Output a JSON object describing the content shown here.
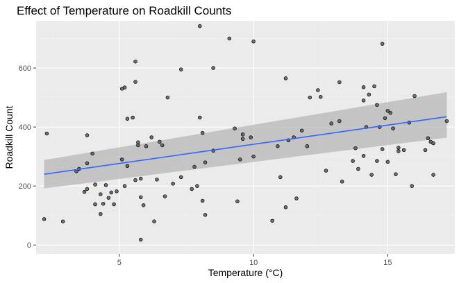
{
  "chart_data": {
    "type": "scatter",
    "title": "Effect of Temperature on Roadkill Counts",
    "xlabel": "Temperature (°C)",
    "ylabel": "Roadkill Count",
    "xlim": [
      1.9,
      17.5
    ],
    "ylim": [
      -30,
      760
    ],
    "x_ticks": [
      5,
      10,
      15
    ],
    "y_ticks": [
      0,
      200,
      400,
      600
    ],
    "grid": true,
    "colors": {
      "panel_background": "#ebebeb",
      "grid_major": "#ffffff",
      "grid_minor": "#f2f2f2",
      "point_fill": "#595959",
      "point_stroke": "#000000",
      "trend_line": "#3366ff",
      "confidence_band": "#b3b3b3"
    },
    "points": [
      {
        "x": 2.2,
        "y": 88
      },
      {
        "x": 2.3,
        "y": 378
      },
      {
        "x": 2.9,
        "y": 80
      },
      {
        "x": 3.4,
        "y": 250
      },
      {
        "x": 3.5,
        "y": 258
      },
      {
        "x": 3.7,
        "y": 180
      },
      {
        "x": 3.8,
        "y": 190
      },
      {
        "x": 3.8,
        "y": 372
      },
      {
        "x": 3.8,
        "y": 277
      },
      {
        "x": 4.0,
        "y": 310
      },
      {
        "x": 4.1,
        "y": 205
      },
      {
        "x": 4.1,
        "y": 138
      },
      {
        "x": 4.3,
        "y": 172
      },
      {
        "x": 4.3,
        "y": 105
      },
      {
        "x": 4.4,
        "y": 140
      },
      {
        "x": 4.5,
        "y": 203
      },
      {
        "x": 4.6,
        "y": 160
      },
      {
        "x": 4.7,
        "y": 178
      },
      {
        "x": 4.8,
        "y": 138
      },
      {
        "x": 4.9,
        "y": 182
      },
      {
        "x": 5.1,
        "y": 530
      },
      {
        "x": 5.1,
        "y": 290
      },
      {
        "x": 5.2,
        "y": 534
      },
      {
        "x": 5.2,
        "y": 200
      },
      {
        "x": 5.3,
        "y": 268
      },
      {
        "x": 5.3,
        "y": 428
      },
      {
        "x": 5.5,
        "y": 432
      },
      {
        "x": 5.6,
        "y": 622
      },
      {
        "x": 5.6,
        "y": 553
      },
      {
        "x": 5.7,
        "y": 338
      },
      {
        "x": 5.7,
        "y": 348
      },
      {
        "x": 5.8,
        "y": 162
      },
      {
        "x": 5.8,
        "y": 225
      },
      {
        "x": 5.8,
        "y": 18
      },
      {
        "x": 5.9,
        "y": 135
      },
      {
        "x": 5.6,
        "y": 220
      },
      {
        "x": 6.0,
        "y": 335
      },
      {
        "x": 6.2,
        "y": 365
      },
      {
        "x": 6.3,
        "y": 80
      },
      {
        "x": 6.4,
        "y": 222
      },
      {
        "x": 6.5,
        "y": 350
      },
      {
        "x": 6.6,
        "y": 338
      },
      {
        "x": 6.7,
        "y": 165
      },
      {
        "x": 6.8,
        "y": 500
      },
      {
        "x": 7.0,
        "y": 208
      },
      {
        "x": 7.3,
        "y": 230
      },
      {
        "x": 7.3,
        "y": 595
      },
      {
        "x": 7.7,
        "y": 190
      },
      {
        "x": 7.8,
        "y": 265
      },
      {
        "x": 7.9,
        "y": 200
      },
      {
        "x": 8.0,
        "y": 742
      },
      {
        "x": 8.0,
        "y": 432
      },
      {
        "x": 8.1,
        "y": 380
      },
      {
        "x": 8.1,
        "y": 150
      },
      {
        "x": 8.2,
        "y": 280
      },
      {
        "x": 8.2,
        "y": 102
      },
      {
        "x": 8.5,
        "y": 600
      },
      {
        "x": 8.5,
        "y": 320
      },
      {
        "x": 9.1,
        "y": 700
      },
      {
        "x": 9.3,
        "y": 395
      },
      {
        "x": 9.4,
        "y": 148
      },
      {
        "x": 9.5,
        "y": 290
      },
      {
        "x": 9.6,
        "y": 360
      },
      {
        "x": 9.6,
        "y": 375
      },
      {
        "x": 9.9,
        "y": 365
      },
      {
        "x": 10.0,
        "y": 690
      },
      {
        "x": 10.0,
        "y": 300
      },
      {
        "x": 10.7,
        "y": 82
      },
      {
        "x": 10.9,
        "y": 335
      },
      {
        "x": 11.0,
        "y": 230
      },
      {
        "x": 11.2,
        "y": 565
      },
      {
        "x": 11.2,
        "y": 128
      },
      {
        "x": 11.3,
        "y": 355
      },
      {
        "x": 11.5,
        "y": 365
      },
      {
        "x": 11.6,
        "y": 158
      },
      {
        "x": 11.8,
        "y": 388
      },
      {
        "x": 12.0,
        "y": 335
      },
      {
        "x": 12.1,
        "y": 500
      },
      {
        "x": 12.4,
        "y": 525
      },
      {
        "x": 12.5,
        "y": 502
      },
      {
        "x": 12.7,
        "y": 252
      },
      {
        "x": 12.9,
        "y": 412
      },
      {
        "x": 13.2,
        "y": 420
      },
      {
        "x": 13.2,
        "y": 552
      },
      {
        "x": 13.3,
        "y": 215
      },
      {
        "x": 13.7,
        "y": 285
      },
      {
        "x": 13.8,
        "y": 328
      },
      {
        "x": 13.9,
        "y": 258
      },
      {
        "x": 14.1,
        "y": 535
      },
      {
        "x": 14.1,
        "y": 490
      },
      {
        "x": 14.1,
        "y": 302
      },
      {
        "x": 14.2,
        "y": 400
      },
      {
        "x": 14.3,
        "y": 510
      },
      {
        "x": 14.4,
        "y": 238
      },
      {
        "x": 14.5,
        "y": 538
      },
      {
        "x": 14.6,
        "y": 475
      },
      {
        "x": 14.6,
        "y": 285
      },
      {
        "x": 14.7,
        "y": 400
      },
      {
        "x": 14.8,
        "y": 682
      },
      {
        "x": 14.8,
        "y": 325
      },
      {
        "x": 14.9,
        "y": 430
      },
      {
        "x": 15.0,
        "y": 455
      },
      {
        "x": 15.0,
        "y": 282
      },
      {
        "x": 15.1,
        "y": 448
      },
      {
        "x": 15.2,
        "y": 395
      },
      {
        "x": 15.3,
        "y": 240
      },
      {
        "x": 15.4,
        "y": 318
      },
      {
        "x": 15.4,
        "y": 330
      },
      {
        "x": 15.6,
        "y": 322
      },
      {
        "x": 15.8,
        "y": 415
      },
      {
        "x": 15.9,
        "y": 200
      },
      {
        "x": 16.0,
        "y": 505
      },
      {
        "x": 16.4,
        "y": 322
      },
      {
        "x": 16.5,
        "y": 362
      },
      {
        "x": 16.6,
        "y": 350
      },
      {
        "x": 16.7,
        "y": 345
      },
      {
        "x": 16.7,
        "y": 238
      },
      {
        "x": 17.2,
        "y": 420
      }
    ],
    "trend": {
      "x": [
        2.2,
        17.2
      ],
      "y": [
        240,
        435
      ],
      "ci_lower": [
        192,
        364
      ],
      "ci_upper": [
        288,
        518
      ]
    }
  }
}
